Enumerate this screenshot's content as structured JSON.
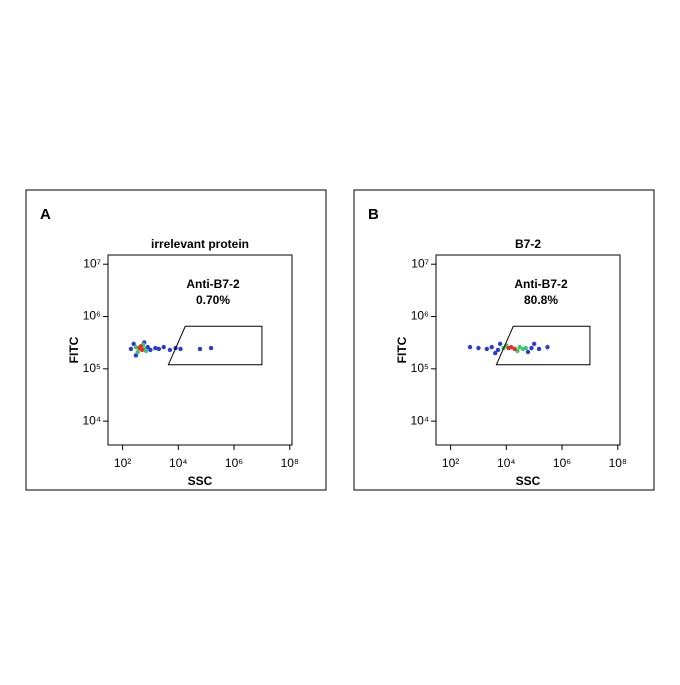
{
  "chart_data": [
    {
      "type": "scatter",
      "panel": "A",
      "title": "irrelevant protein",
      "x_label": "SSC",
      "y_label": "FITC",
      "xlog": true,
      "ylog": true,
      "xlim": [
        30,
        120000000
      ],
      "ylim": [
        3500,
        15000000
      ],
      "xticks": [
        {
          "value": 100,
          "label": "10²"
        },
        {
          "value": 10000,
          "label": "10⁴"
        },
        {
          "value": 1000000,
          "label": "10⁶"
        },
        {
          "value": 100000000,
          "label": "10⁸"
        }
      ],
      "yticks": [
        {
          "value": 10000,
          "label": "10⁴"
        },
        {
          "value": 100000,
          "label": "10⁵"
        },
        {
          "value": 1000000,
          "label": "10⁶"
        },
        {
          "value": 10000000,
          "label": "10⁷"
        }
      ],
      "series": [
        {
          "color": "#2a3bd6",
          "x": [
            250,
            200,
            800,
            1000,
            1500,
            2000,
            3000,
            5000,
            8000,
            12000,
            300,
            600,
            150000,
            60000
          ],
          "values": [
            300000,
            240000,
            260000,
            230000,
            250000,
            240000,
            260000,
            230000,
            250000,
            240000,
            180000,
            320000,
            250000,
            240000
          ]
        },
        {
          "color": "#3cc86a",
          "x": [
            300,
            600,
            350,
            550,
            700
          ],
          "values": [
            260000,
            240000,
            210000,
            290000,
            220000
          ]
        },
        {
          "color": "#e8302a",
          "x": [
            400,
            500,
            450
          ],
          "values": [
            250000,
            230000,
            270000
          ]
        }
      ],
      "gate": {
        "name": "Anti-B7-2",
        "value": 0.7,
        "value_label": "0.70%",
        "x": [
          17800,
          10000000,
          10000000,
          4400
        ],
        "y": [
          650000,
          650000,
          120000,
          120000
        ]
      }
    },
    {
      "type": "scatter",
      "panel": "B",
      "title": "B7-2",
      "x_label": "SSC",
      "y_label": "FITC",
      "xlog": true,
      "ylog": true,
      "xlim": [
        30,
        120000000
      ],
      "ylim": [
        3500,
        15000000
      ],
      "xticks": [
        {
          "value": 100,
          "label": "10²"
        },
        {
          "value": 10000,
          "label": "10⁴"
        },
        {
          "value": 1000000,
          "label": "10⁶"
        },
        {
          "value": 100000000,
          "label": "10⁸"
        }
      ],
      "yticks": [
        {
          "value": 10000,
          "label": "10⁴"
        },
        {
          "value": 100000,
          "label": "10⁵"
        },
        {
          "value": 1000000,
          "label": "10⁶"
        },
        {
          "value": 10000000,
          "label": "10⁷"
        }
      ],
      "series": [
        {
          "color": "#2a3bd6",
          "x": [
            1000,
            2000,
            3000,
            5000,
            6000,
            80000,
            150000,
            300000,
            100000,
            4000,
            60000,
            500
          ],
          "values": [
            250000,
            240000,
            260000,
            230000,
            300000,
            250000,
            240000,
            260000,
            300000,
            200000,
            210000,
            260000
          ]
        },
        {
          "color": "#3cc86a",
          "x": [
            8000,
            30000,
            40000,
            10000,
            25000,
            50000
          ],
          "values": [
            250000,
            260000,
            240000,
            280000,
            220000,
            250000
          ]
        },
        {
          "color": "#e8302a",
          "x": [
            15000,
            20000,
            12000
          ],
          "values": [
            260000,
            240000,
            250000
          ]
        }
      ],
      "gate": {
        "name": "Anti-B7-2",
        "value": 80.8,
        "value_label": "80.8%",
        "x": [
          17800,
          10000000,
          10000000,
          4400
        ],
        "y": [
          650000,
          650000,
          120000,
          120000
        ]
      }
    }
  ]
}
